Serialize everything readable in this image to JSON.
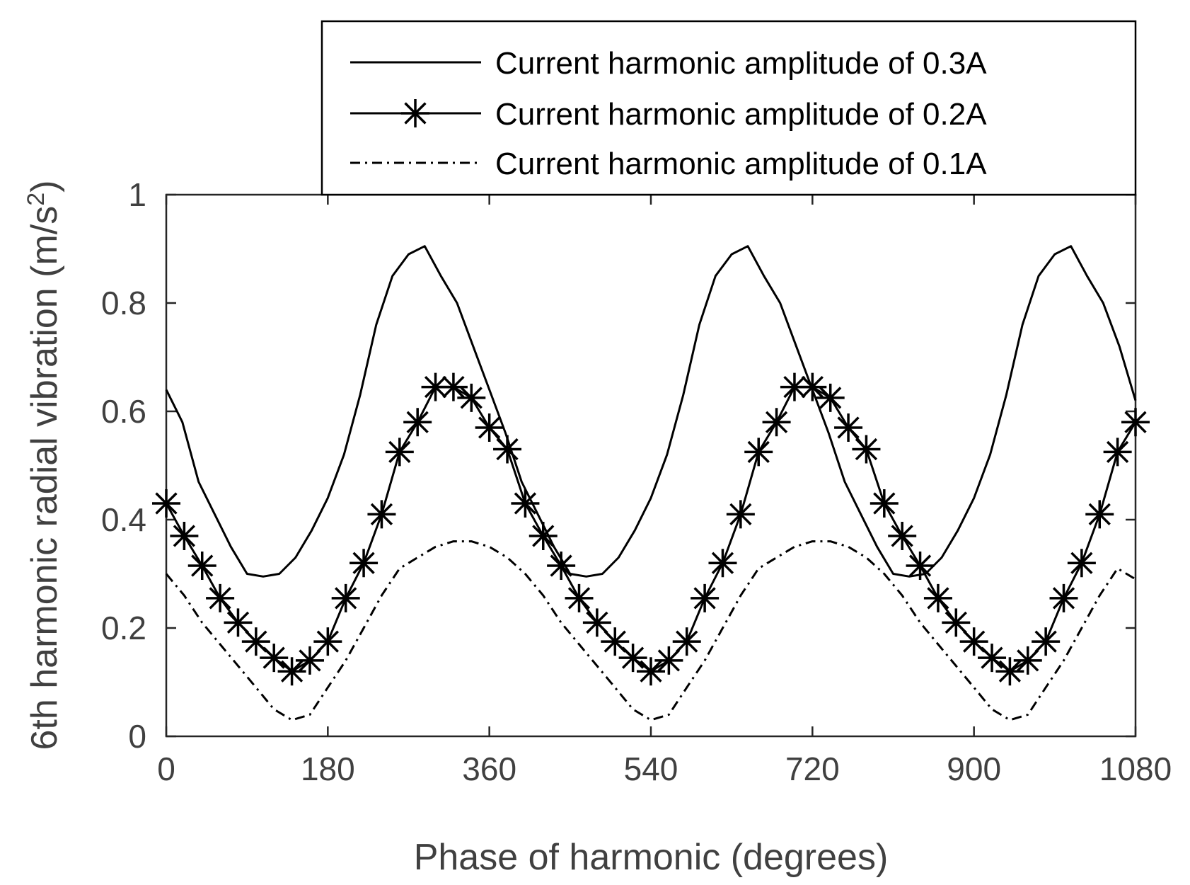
{
  "chart_data": {
    "type": "line",
    "xlabel": "Phase of harmonic (degrees)",
    "ylabel_main": "6th harmonic radial vibration (m/s",
    "ylabel_sup": "2",
    "ylabel_close": ")",
    "xlim": [
      0,
      1080
    ],
    "ylim": [
      0,
      1
    ],
    "xticks": [
      0,
      180,
      360,
      540,
      720,
      900,
      1080
    ],
    "xtick_labels": [
      "0",
      "180",
      "360",
      "540",
      "720",
      "900",
      "1080"
    ],
    "yticks": [
      0,
      0.2,
      0.4,
      0.6,
      0.8,
      1
    ],
    "ytick_labels": [
      "0",
      "0.2",
      "0.4",
      "0.6",
      "0.8",
      "1"
    ],
    "grid": false,
    "legend_position": "top-right",
    "series": [
      {
        "name": "Current harmonic amplitude of 0.3A",
        "style": "solid",
        "x": [
          0,
          18,
          36,
          54,
          72,
          90,
          108,
          126,
          144,
          162,
          180,
          198,
          216,
          234,
          252,
          270,
          288,
          306,
          324,
          342,
          360,
          378,
          396,
          414,
          432,
          450,
          468,
          486,
          504,
          522,
          540,
          558,
          576,
          594,
          612,
          630,
          648,
          666,
          684,
          702,
          720,
          738,
          756,
          774,
          792,
          810,
          828,
          846,
          864,
          882,
          900,
          918,
          936,
          954,
          972,
          990,
          1008,
          1026,
          1044,
          1062,
          1080
        ],
        "y": [
          0.64,
          0.58,
          0.47,
          0.41,
          0.35,
          0.3,
          0.295,
          0.3,
          0.33,
          0.38,
          0.44,
          0.52,
          0.63,
          0.76,
          0.85,
          0.89,
          0.905,
          0.85,
          0.8,
          0.72,
          0.64,
          0.56,
          0.47,
          0.41,
          0.35,
          0.3,
          0.295,
          0.3,
          0.33,
          0.38,
          0.44,
          0.52,
          0.63,
          0.76,
          0.85,
          0.89,
          0.905,
          0.85,
          0.8,
          0.72,
          0.64,
          0.56,
          0.47,
          0.41,
          0.35,
          0.3,
          0.295,
          0.3,
          0.33,
          0.38,
          0.44,
          0.52,
          0.63,
          0.76,
          0.85,
          0.89,
          0.905,
          0.85,
          0.8,
          0.72,
          0.62
        ]
      },
      {
        "name": "Current harmonic amplitude of 0.2A",
        "style": "solid-asterisk",
        "x": [
          0,
          20,
          40,
          60,
          80,
          100,
          120,
          140,
          160,
          180,
          200,
          220,
          240,
          260,
          280,
          300,
          320,
          340,
          360,
          380,
          400,
          420,
          440,
          460,
          480,
          500,
          520,
          540,
          560,
          580,
          600,
          620,
          640,
          660,
          680,
          700,
          720,
          740,
          760,
          780,
          800,
          820,
          840,
          860,
          880,
          900,
          920,
          940,
          960,
          980,
          1000,
          1020,
          1040,
          1060,
          1080
        ],
        "y": [
          0.43,
          0.37,
          0.315,
          0.255,
          0.21,
          0.175,
          0.145,
          0.12,
          0.14,
          0.175,
          0.255,
          0.32,
          0.41,
          0.525,
          0.58,
          0.645,
          0.645,
          0.625,
          0.57,
          0.53,
          0.43,
          0.37,
          0.315,
          0.255,
          0.21,
          0.175,
          0.145,
          0.12,
          0.14,
          0.175,
          0.255,
          0.32,
          0.41,
          0.525,
          0.58,
          0.645,
          0.645,
          0.625,
          0.57,
          0.53,
          0.43,
          0.37,
          0.315,
          0.255,
          0.21,
          0.175,
          0.145,
          0.12,
          0.14,
          0.175,
          0.255,
          0.32,
          0.41,
          0.525,
          0.58
        ]
      },
      {
        "name": "Current harmonic amplitude of 0.1A",
        "style": "dash-dot",
        "x": [
          0,
          20,
          40,
          60,
          80,
          100,
          120,
          140,
          160,
          180,
          200,
          220,
          240,
          260,
          280,
          300,
          320,
          340,
          360,
          380,
          400,
          420,
          440,
          460,
          480,
          500,
          520,
          540,
          560,
          580,
          600,
          620,
          640,
          660,
          680,
          700,
          720,
          740,
          760,
          780,
          800,
          820,
          840,
          860,
          880,
          900,
          920,
          940,
          960,
          980,
          1000,
          1020,
          1040,
          1060,
          1080
        ],
        "y": [
          0.3,
          0.26,
          0.21,
          0.17,
          0.13,
          0.09,
          0.05,
          0.03,
          0.04,
          0.09,
          0.14,
          0.2,
          0.26,
          0.31,
          0.33,
          0.35,
          0.36,
          0.36,
          0.35,
          0.33,
          0.3,
          0.26,
          0.21,
          0.17,
          0.13,
          0.09,
          0.05,
          0.03,
          0.04,
          0.09,
          0.14,
          0.2,
          0.26,
          0.31,
          0.33,
          0.35,
          0.36,
          0.36,
          0.35,
          0.33,
          0.3,
          0.26,
          0.21,
          0.17,
          0.13,
          0.09,
          0.05,
          0.03,
          0.04,
          0.09,
          0.14,
          0.2,
          0.26,
          0.31,
          0.29
        ]
      }
    ]
  }
}
